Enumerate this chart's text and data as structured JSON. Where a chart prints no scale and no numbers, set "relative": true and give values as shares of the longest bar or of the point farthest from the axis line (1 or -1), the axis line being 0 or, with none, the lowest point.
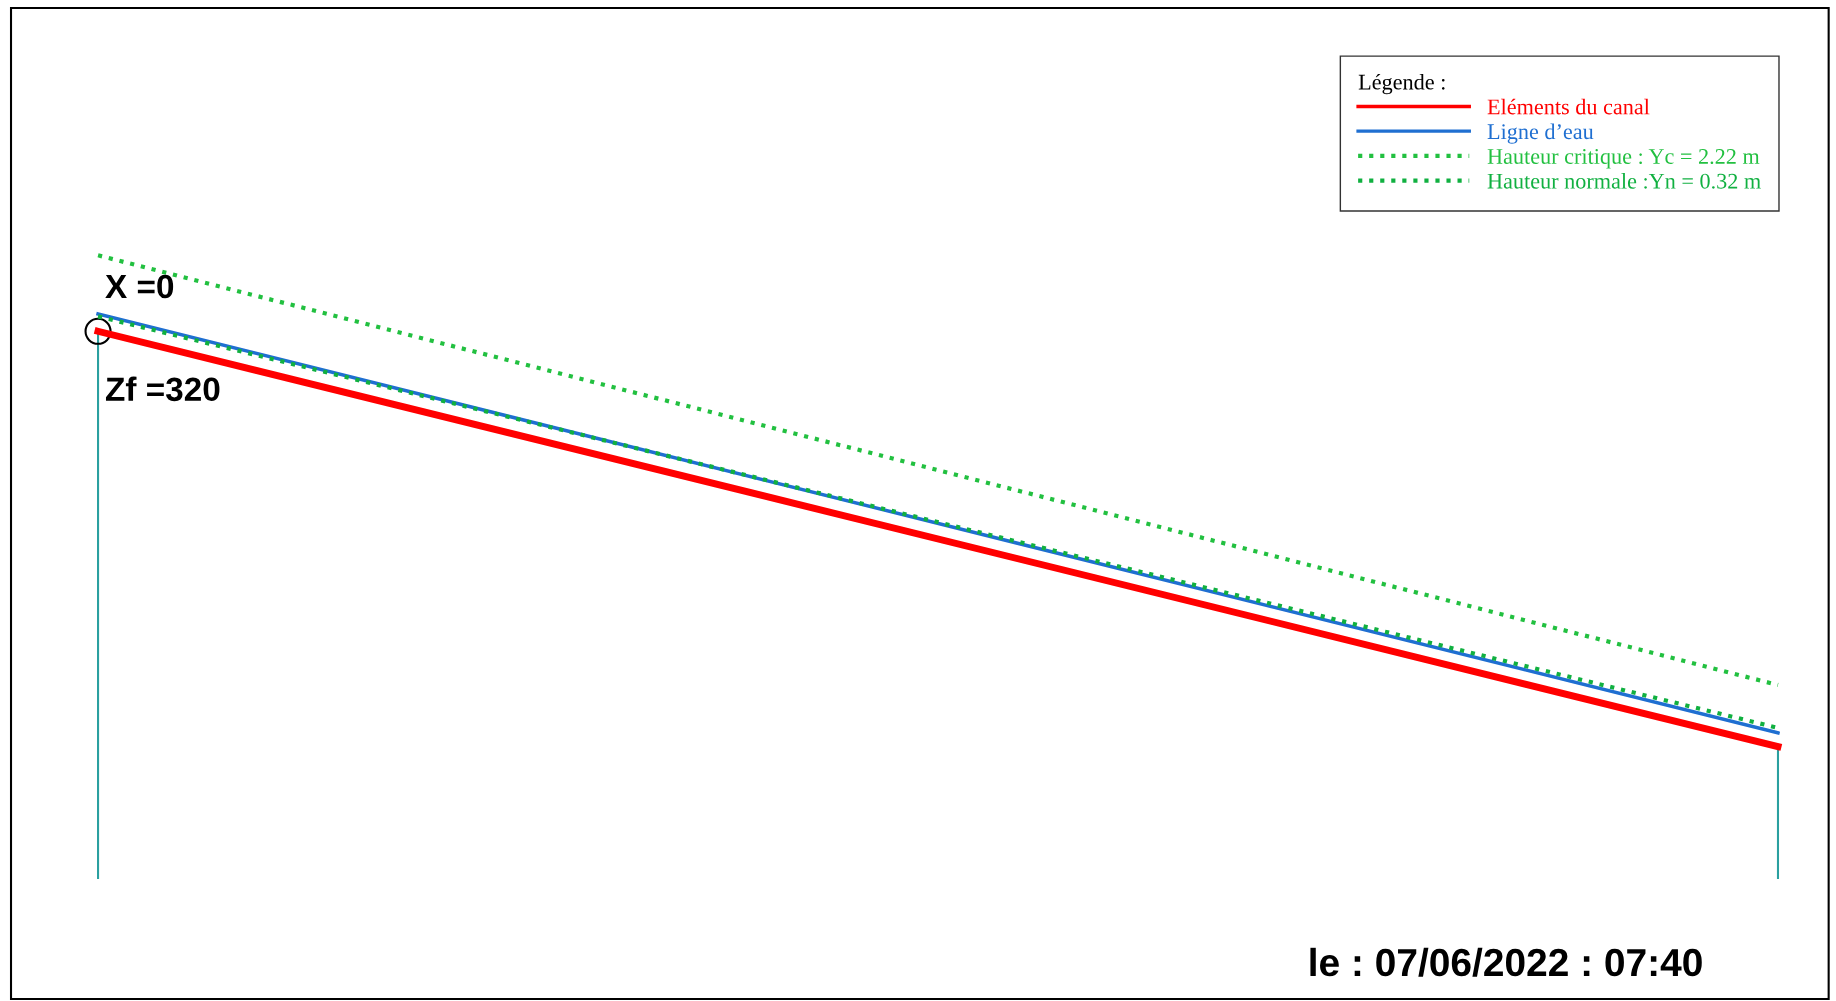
{
  "chart_data": {
    "type": "line",
    "relative": true,
    "categories": [
      null,
      null
    ],
    "legend": "top right",
    "legend_title": "Légende :",
    "series": [
      {
        "name": "Eléments du canal",
        "color": "#ff0000",
        "values": [
          0.878,
          0.211
        ],
        "line_style": "solid"
      },
      {
        "name": "Ligne d’eau",
        "color": "#1f6fd1",
        "values": [
          0.906,
          0.233
        ],
        "line_style": "solid"
      },
      {
        "name": "Hauteur critique : Yc = 2.22 m",
        "color": "#22c040",
        "values": [
          1.0,
          0.31
        ],
        "line_style": "dotted"
      },
      {
        "name": "Hauteur normale :Yn = 0.32 m",
        "color": "#10b040",
        "values": [
          0.902,
          0.241
        ],
        "line_style": "dotted"
      }
    ],
    "annotations": [
      "X =0",
      "Zf =320",
      "le : 07/06/2022 : 07:40"
    ]
  }
}
